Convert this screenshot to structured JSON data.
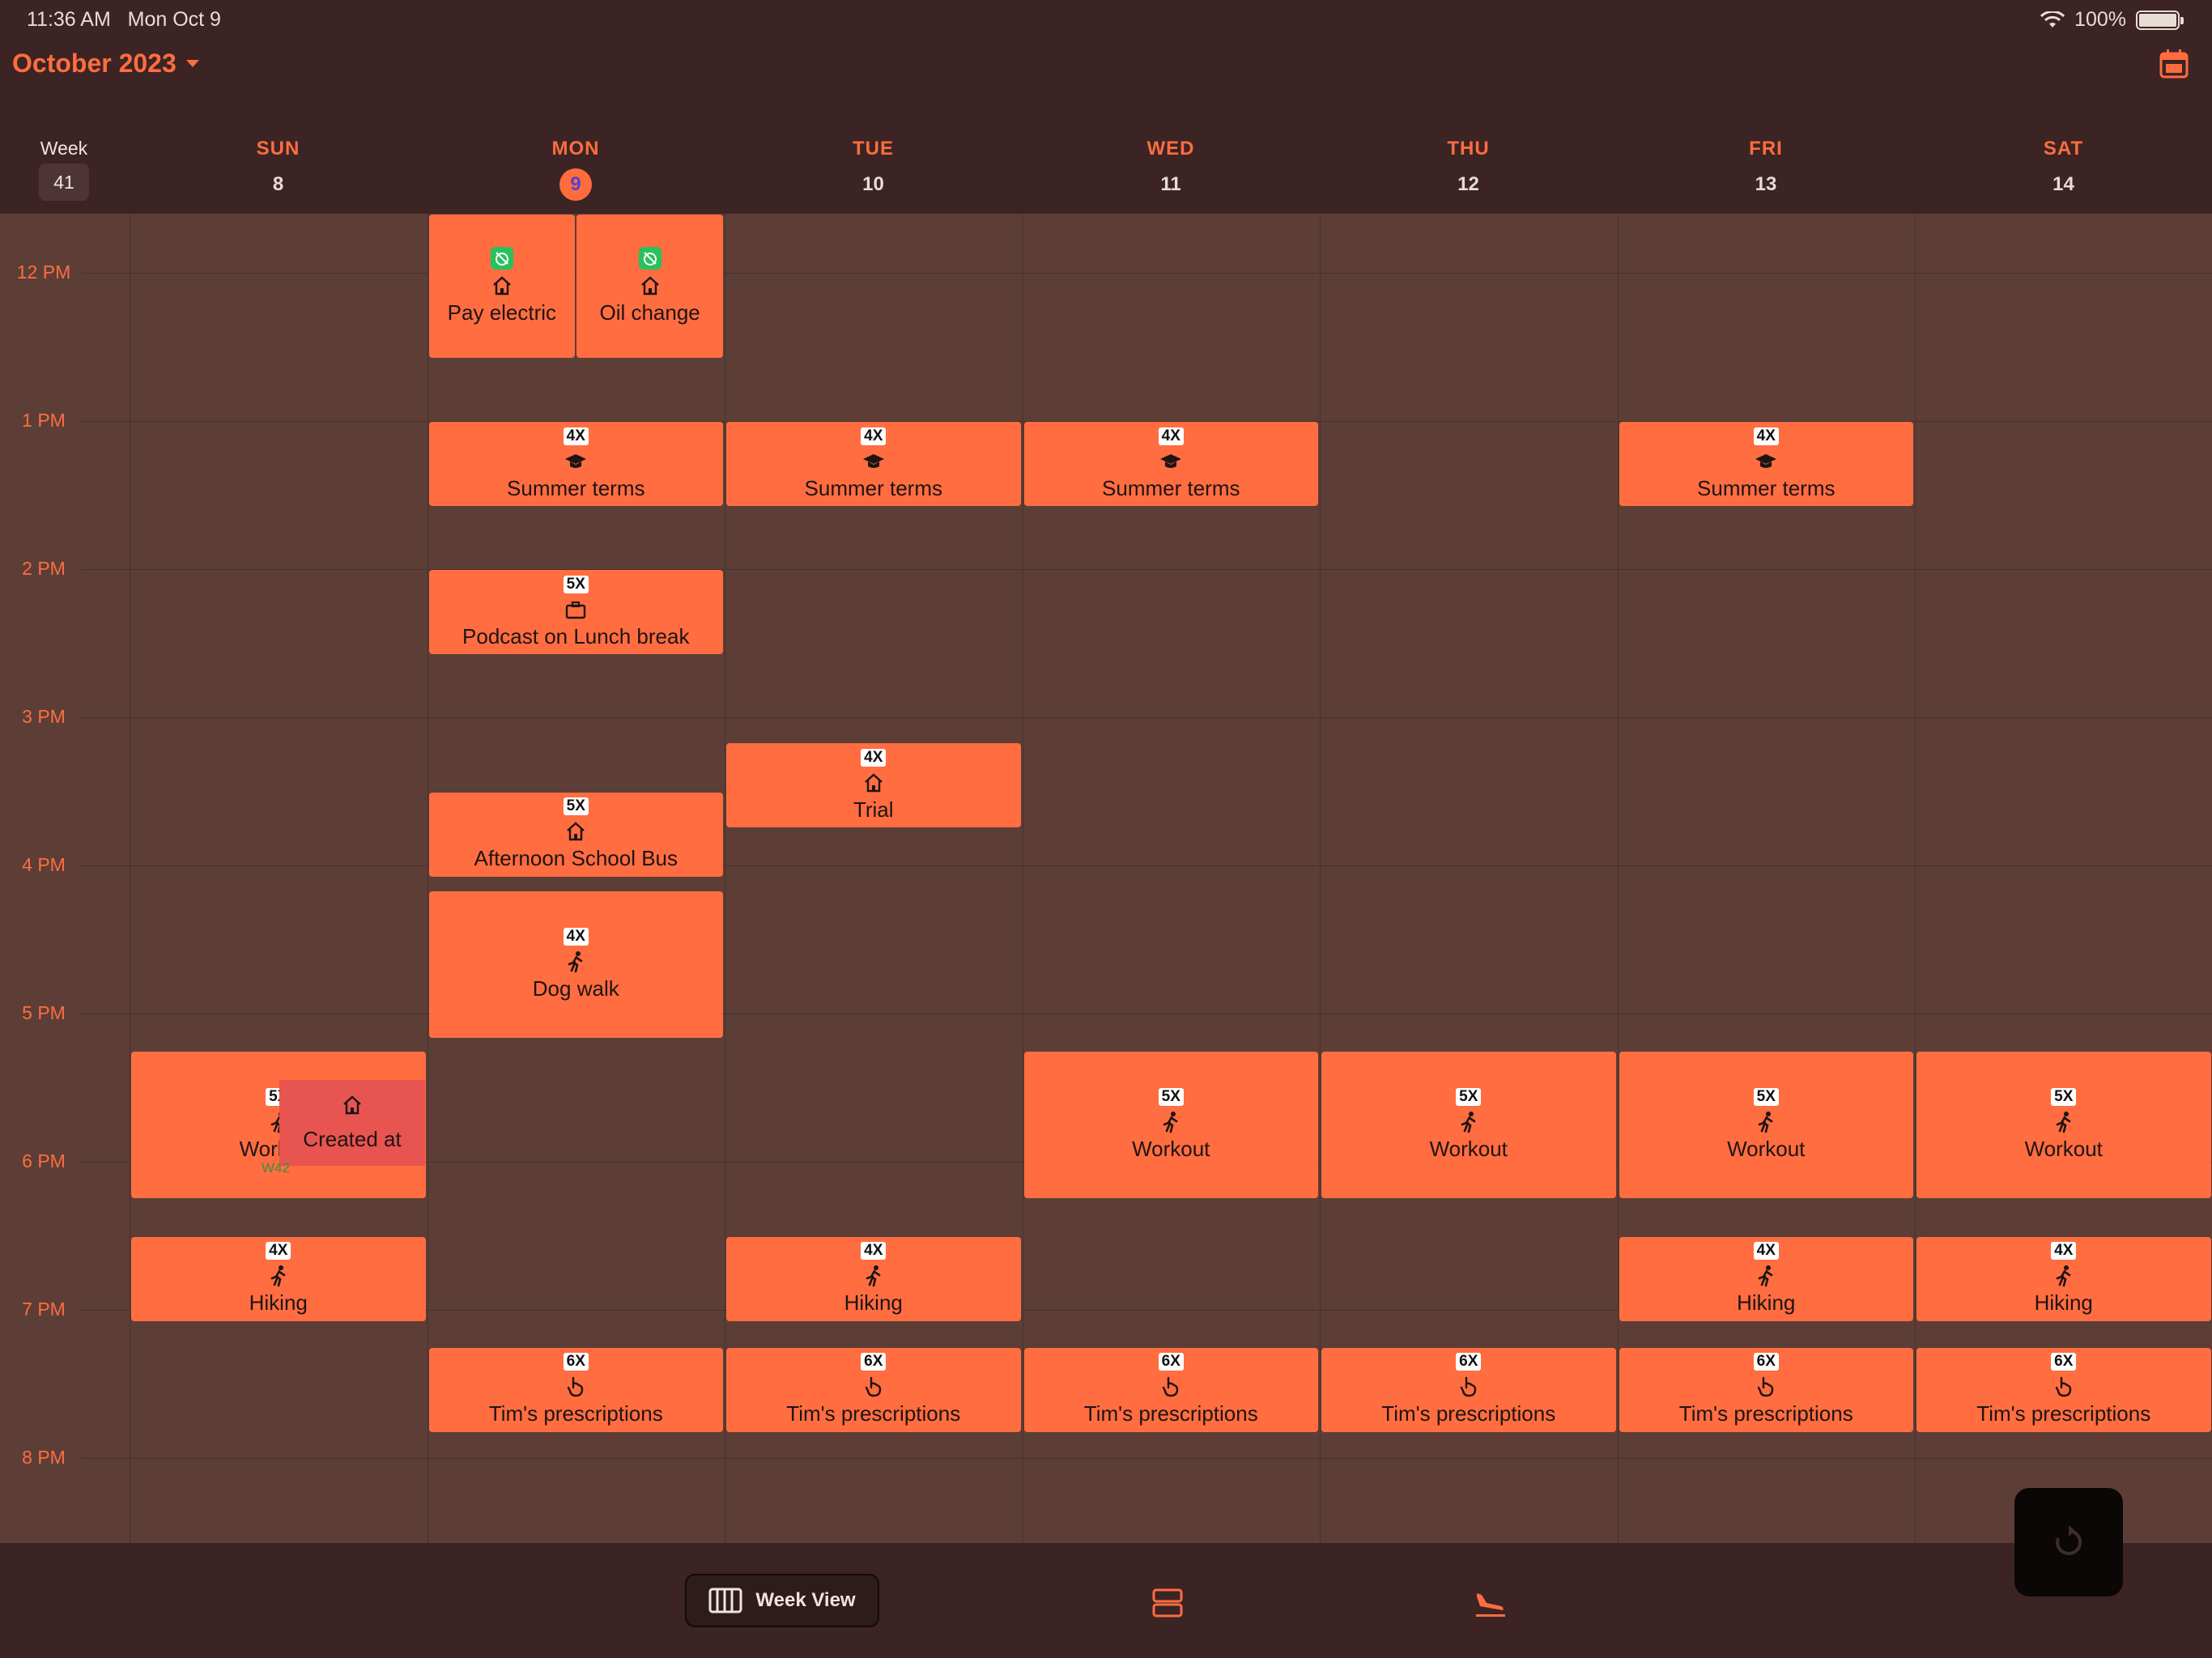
{
  "status": {
    "time": "11:36 AM",
    "date": "Mon Oct 9",
    "battery": "100%"
  },
  "header": {
    "month": "October 2023",
    "week_label": "Week",
    "week_number": "41"
  },
  "days": [
    {
      "name": "SUN",
      "date": "8"
    },
    {
      "name": "MON",
      "date": "9",
      "today": true
    },
    {
      "name": "TUE",
      "date": "10"
    },
    {
      "name": "WED",
      "date": "11"
    },
    {
      "name": "THU",
      "date": "12"
    },
    {
      "name": "FRI",
      "date": "13"
    },
    {
      "name": "SAT",
      "date": "14"
    }
  ],
  "hours": [
    "12 PM",
    "1 PM",
    "2 PM",
    "3 PM",
    "4 PM",
    "5 PM",
    "6 PM",
    "7 PM",
    "8 PM"
  ],
  "events": [
    {
      "title": "Pay electric",
      "day": 1,
      "start": 11.6,
      "end": 12.58,
      "icon": "home",
      "green": true,
      "half": 0
    },
    {
      "title": "Oil change",
      "day": 1,
      "start": 11.6,
      "end": 12.58,
      "icon": "home",
      "green": true,
      "half": 1
    },
    {
      "title": "Summer terms",
      "day": 1,
      "start": 13.0,
      "end": 13.58,
      "icon": "graduation-cap",
      "badge": "4X"
    },
    {
      "title": "Summer terms",
      "day": 2,
      "start": 13.0,
      "end": 13.58,
      "icon": "graduation-cap",
      "badge": "4X"
    },
    {
      "title": "Summer terms",
      "day": 3,
      "start": 13.0,
      "end": 13.58,
      "icon": "graduation-cap",
      "badge": "4X"
    },
    {
      "title": "Summer terms",
      "day": 5,
      "start": 13.0,
      "end": 13.58,
      "icon": "graduation-cap",
      "badge": "4X"
    },
    {
      "title": "Podcast on Lunch break",
      "day": 1,
      "start": 14.0,
      "end": 14.58,
      "icon": "briefcase",
      "badge": "5X"
    },
    {
      "title": "Trial",
      "day": 2,
      "start": 15.17,
      "end": 15.75,
      "icon": "home",
      "badge": "4X"
    },
    {
      "title": "Afternoon School Bus",
      "day": 1,
      "start": 15.5,
      "end": 16.08,
      "icon": "home",
      "badge": "5X"
    },
    {
      "title": "Dog walk",
      "day": 1,
      "start": 16.17,
      "end": 17.17,
      "icon": "runner",
      "badge": "4X"
    },
    {
      "title": "Workout",
      "day": 0,
      "start": 17.25,
      "end": 18.25,
      "icon": "runner",
      "badge": "5X"
    },
    {
      "title": "Workout",
      "day": 3,
      "start": 17.25,
      "end": 18.25,
      "icon": "runner",
      "badge": "5X"
    },
    {
      "title": "Workout",
      "day": 4,
      "start": 17.25,
      "end": 18.25,
      "icon": "runner",
      "badge": "5X"
    },
    {
      "title": "Workout",
      "day": 5,
      "start": 17.25,
      "end": 18.25,
      "icon": "runner",
      "badge": "5X"
    },
    {
      "title": "Workout",
      "day": 6,
      "start": 17.25,
      "end": 18.25,
      "icon": "runner",
      "badge": "5X"
    },
    {
      "title": "Hiking",
      "day": 0,
      "start": 18.5,
      "end": 19.08,
      "icon": "runner",
      "badge": "4X"
    },
    {
      "title": "Hiking",
      "day": 2,
      "start": 18.5,
      "end": 19.08,
      "icon": "runner",
      "badge": "4X"
    },
    {
      "title": "Hiking",
      "day": 5,
      "start": 18.5,
      "end": 19.08,
      "icon": "runner",
      "badge": "4X"
    },
    {
      "title": "Hiking",
      "day": 6,
      "start": 18.5,
      "end": 19.08,
      "icon": "runner",
      "badge": "4X"
    },
    {
      "title": "Tim's prescriptions",
      "day": 1,
      "start": 19.25,
      "end": 19.83,
      "icon": "hand",
      "badge": "6X"
    },
    {
      "title": "Tim's prescriptions",
      "day": 2,
      "start": 19.25,
      "end": 19.83,
      "icon": "hand",
      "badge": "6X"
    },
    {
      "title": "Tim's prescriptions",
      "day": 3,
      "start": 19.25,
      "end": 19.83,
      "icon": "hand",
      "badge": "6X"
    },
    {
      "title": "Tim's prescriptions",
      "day": 4,
      "start": 19.25,
      "end": 19.83,
      "icon": "hand",
      "badge": "6X"
    },
    {
      "title": "Tim's prescriptions",
      "day": 5,
      "start": 19.25,
      "end": 19.83,
      "icon": "hand",
      "badge": "6X"
    },
    {
      "title": "Tim's prescriptions",
      "day": 6,
      "start": 19.25,
      "end": 19.83,
      "icon": "hand",
      "badge": "6X"
    }
  ],
  "overlay": {
    "title": "Created at",
    "week_tag": "W42"
  },
  "toolbar": {
    "week_view_label": "Week View"
  },
  "colors": {
    "accent": "#ff6d3f",
    "event": "#ff6d40",
    "grid": "#5c3e37",
    "overlay": "#e85450"
  }
}
